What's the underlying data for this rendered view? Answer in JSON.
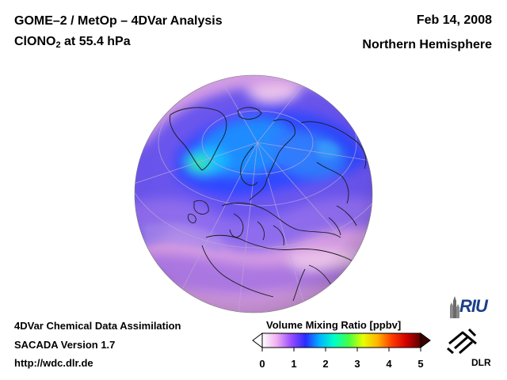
{
  "header": {
    "title_line1": "GOME–2 / MetOp – 4DVar Analysis",
    "species": "ClONO",
    "species_subscript": "2",
    "level_text": " at 55.4 hPa",
    "date": "Feb 14, 2008",
    "region": "Northern Hemisphere"
  },
  "footer": {
    "line1": "4DVar Chemical Data Assimilation",
    "line2": "SACADA Version 1.7",
    "line3": "http://wdc.dlr.de"
  },
  "colorbar": {
    "title": "Volume Mixing Ratio [ppbv]",
    "min": 0,
    "max": 5,
    "ticks": [
      "0",
      "1",
      "2",
      "3",
      "4",
      "5"
    ],
    "tick_values": [
      0,
      1,
      2,
      3,
      4,
      5
    ],
    "colors": [
      "#ffffff",
      "#f0b0f0",
      "#9a4dff",
      "#2a2aff",
      "#00b4ff",
      "#00ffc8",
      "#44ff44",
      "#e6ff00",
      "#ffb400",
      "#ff3c00",
      "#d20000",
      "#5a0000"
    ]
  },
  "logos": {
    "riu": "RIU",
    "dlr": "DLR"
  }
}
